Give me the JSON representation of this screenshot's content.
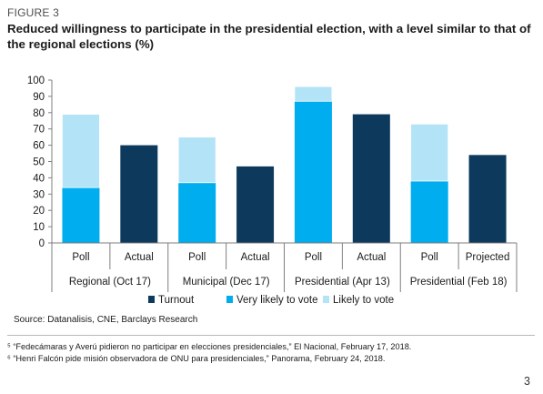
{
  "figure_label": "FIGURE 3",
  "title": "Reduced willingness to participate in the presidential election, with a level similar to that of the regional elections (%)",
  "colors": {
    "turnout": "#0d3a5c",
    "very_likely": "#00aeef",
    "likely": "#b3e3f6",
    "axis": "#7f7f7f"
  },
  "chart_data": {
    "type": "bar",
    "stacked": true,
    "ylim": [
      0,
      100
    ],
    "yticks": [
      0,
      10,
      20,
      30,
      40,
      50,
      60,
      70,
      80,
      90,
      100
    ],
    "categories": [
      "Poll",
      "Actual",
      "Poll",
      "Actual",
      "Poll",
      "Actual",
      "Poll",
      "Projected"
    ],
    "groups": [
      {
        "label": "Regional (Oct 17)",
        "span": 2
      },
      {
        "label": "Municipal (Dec 17)",
        "span": 2
      },
      {
        "label": "Presidential (Apr 13)",
        "span": 2
      },
      {
        "label": "Presidential (Feb 18)",
        "span": 2
      }
    ],
    "series": [
      {
        "name": "Turnout",
        "color": "#0d3a5c",
        "values": [
          null,
          60,
          null,
          47,
          null,
          79,
          null,
          54
        ]
      },
      {
        "name": "Very likely to vote",
        "color": "#00aeef",
        "values": [
          34,
          null,
          37,
          null,
          87,
          null,
          38,
          null
        ]
      },
      {
        "name": "Likely to vote",
        "color": "#b3e3f6",
        "values": [
          45,
          null,
          28,
          null,
          9,
          null,
          35,
          null
        ]
      }
    ],
    "legend_position": "bottom"
  },
  "source": "Source: Datanalisis, CNE, Barclays Research",
  "footnotes": [
    "⁵ “Fedecámaras y Averú pidieron no participar en elecciones presidenciales,” El Nacional, February 17, 2018.",
    "⁶ “Henri Falcón pide misión observadora de ONU para presidenciales,” Panorama, February 24, 2018."
  ],
  "page_number": "3"
}
